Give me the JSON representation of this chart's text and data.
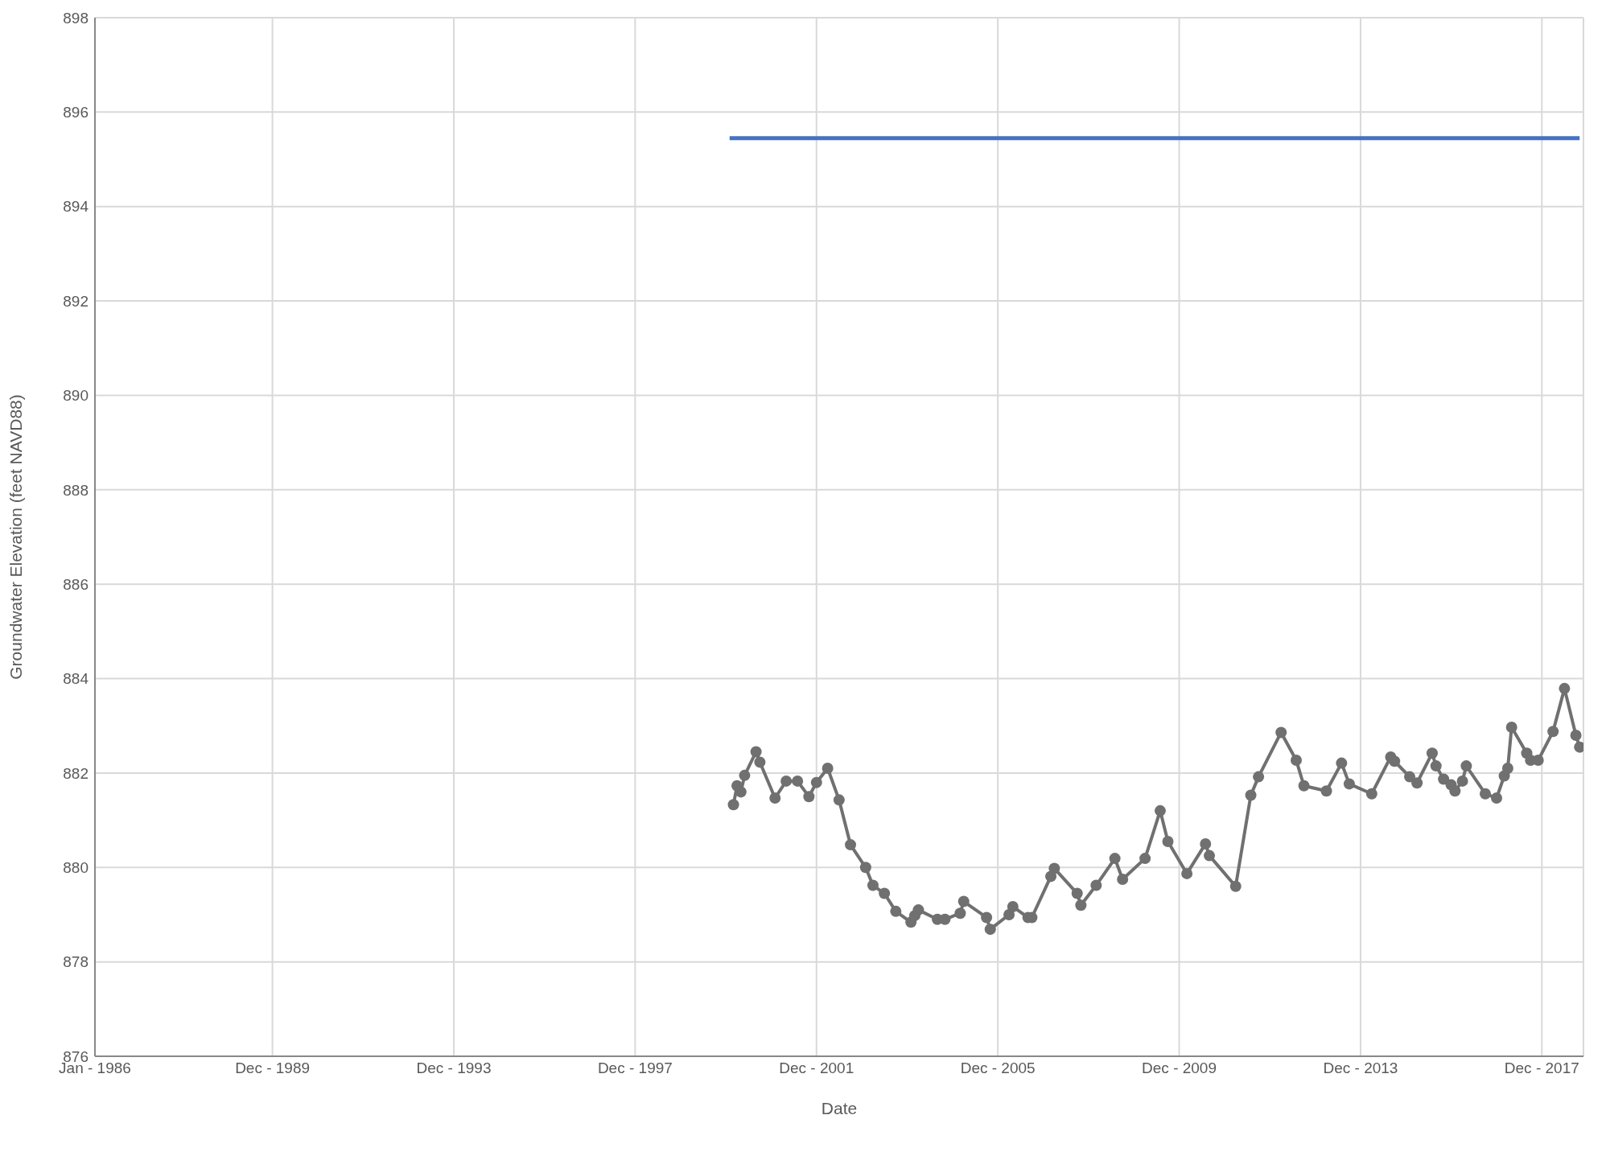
{
  "chart_data": {
    "type": "line",
    "xlabel": "Date",
    "ylabel": "Groundwater Elevation (feet NAVD88)",
    "xlim": [
      "1986-01",
      "2018-11"
    ],
    "xticks": [
      {
        "value": "1986-01",
        "label": "Jan - 1986"
      },
      {
        "value": "1989-12",
        "label": "Dec - 1989"
      },
      {
        "value": "1993-12",
        "label": "Dec - 1993"
      },
      {
        "value": "1997-12",
        "label": "Dec - 1997"
      },
      {
        "value": "2001-12",
        "label": "Dec - 2001"
      },
      {
        "value": "2005-12",
        "label": "Dec - 2005"
      },
      {
        "value": "2009-12",
        "label": "Dec - 2009"
      },
      {
        "value": "2013-12",
        "label": "Dec - 2013"
      },
      {
        "value": "2017-12",
        "label": "Dec - 2017"
      }
    ],
    "ylim": [
      876,
      898
    ],
    "yticks": [
      876,
      878,
      880,
      882,
      884,
      886,
      888,
      890,
      892,
      894,
      896,
      898
    ],
    "grid": true,
    "legend": false,
    "series": [
      {
        "color": "#4472c4",
        "marker": "none",
        "x": [
          "2000-01",
          "2018-10"
        ],
        "values": [
          895.45,
          895.45
        ]
      },
      {
        "color": "#707070",
        "marker": "circle",
        "x": [
          "2000-02",
          "2000-03",
          "2000-04",
          "2000-05",
          "2000-08",
          "2000-09",
          "2001-01",
          "2001-04",
          "2001-07",
          "2001-10",
          "2001-12",
          "2002-03",
          "2002-06",
          "2002-09",
          "2003-01",
          "2003-03",
          "2003-06",
          "2003-09",
          "2004-01",
          "2004-02",
          "2004-03",
          "2004-08",
          "2004-10",
          "2005-02",
          "2005-03",
          "2005-09",
          "2005-10",
          "2006-03",
          "2006-04",
          "2006-08",
          "2006-09",
          "2007-02",
          "2007-03",
          "2007-09",
          "2007-10",
          "2008-02",
          "2008-07",
          "2008-09",
          "2009-03",
          "2009-07",
          "2009-09",
          "2010-02",
          "2010-07",
          "2010-08",
          "2011-03",
          "2011-07",
          "2011-09",
          "2012-03",
          "2012-07",
          "2012-09",
          "2013-03",
          "2013-07",
          "2013-09",
          "2014-03",
          "2014-08",
          "2014-09",
          "2015-01",
          "2015-03",
          "2015-07",
          "2015-08",
          "2015-10",
          "2015-12",
          "2016-01",
          "2016-03",
          "2016-04",
          "2016-09",
          "2016-12",
          "2017-02",
          "2017-03",
          "2017-04",
          "2017-08",
          "2017-09",
          "2017-11",
          "2018-03",
          "2018-06",
          "2018-09",
          "2018-10"
        ],
        "values": [
          881.33,
          881.73,
          881.6,
          881.95,
          882.45,
          882.23,
          881.47,
          881.83,
          881.83,
          881.5,
          881.8,
          882.1,
          881.43,
          880.48,
          880.0,
          879.62,
          879.45,
          879.07,
          878.84,
          878.98,
          879.1,
          878.9,
          878.9,
          879.03,
          879.28,
          878.94,
          878.69,
          879.0,
          879.17,
          878.94,
          878.94,
          879.81,
          879.98,
          879.45,
          879.2,
          879.62,
          880.19,
          879.75,
          880.19,
          881.2,
          880.55,
          879.87,
          880.5,
          880.25,
          879.6,
          881.53,
          881.92,
          882.86,
          882.27,
          881.73,
          881.62,
          882.21,
          881.77,
          881.56,
          882.34,
          882.25,
          881.92,
          881.79,
          882.42,
          882.15,
          881.87,
          881.75,
          881.62,
          881.83,
          882.15,
          881.56,
          881.47,
          881.94,
          882.1,
          882.97,
          882.42,
          882.27,
          882.27,
          882.88,
          883.79,
          882.8,
          882.55
        ]
      }
    ]
  }
}
